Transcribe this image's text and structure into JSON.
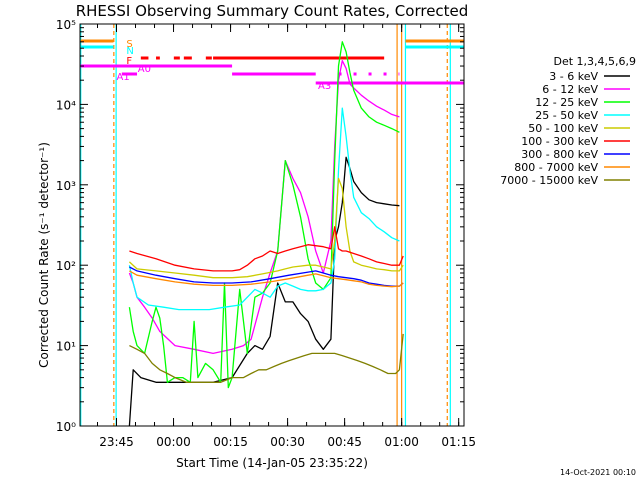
{
  "chart_data": {
    "type": "line",
    "title": "RHESSI Observing Summary Count Rates, Corrected",
    "xlabel": "Start Time (14-Jan-05 23:35:22)",
    "ylabel": "Corrected Count Rate (s⁻¹ detector⁻¹)",
    "footer": "14-Oct-2021 00:10",
    "legend_title": "Det 1,3,4,5,6,9",
    "legend_placement": "right",
    "y_scale": "log",
    "ylim": [
      1,
      100000
    ],
    "y_ticks": [
      {
        "value": 1,
        "label": "10⁰"
      },
      {
        "value": 10,
        "label": "10¹"
      },
      {
        "value": 100,
        "label": "10²"
      },
      {
        "value": 1000,
        "label": "10³"
      },
      {
        "value": 10000,
        "label": "10⁴"
      },
      {
        "value": 100000,
        "label": "10⁵"
      }
    ],
    "xlim_minutes": [
      0,
      101
    ],
    "x_ticks": [
      {
        "minute": 9.6,
        "label": "23:45"
      },
      {
        "minute": 24.6,
        "label": "00:00"
      },
      {
        "minute": 39.6,
        "label": "00:15"
      },
      {
        "minute": 54.6,
        "label": "00:30"
      },
      {
        "minute": 69.6,
        "label": "00:45"
      },
      {
        "minute": 84.6,
        "label": "01:00"
      },
      {
        "minute": 99.6,
        "label": "01:15"
      }
    ],
    "series": [
      {
        "name": "3 - 6 keV",
        "color": "#000000",
        "x": [
          13,
          14,
          16,
          20,
          25,
          30,
          35,
          40,
          44,
          46,
          48,
          50,
          52,
          54,
          56,
          58,
          60,
          62,
          64,
          66,
          67,
          68,
          69,
          70,
          71,
          72,
          74,
          76,
          78,
          80,
          82,
          84
        ],
        "y": [
          1,
          5,
          4,
          3.5,
          3.5,
          3.5,
          3.5,
          4,
          8,
          10,
          9,
          13,
          60,
          35,
          35,
          25,
          20,
          12,
          9,
          12,
          200,
          300,
          600,
          2200,
          1600,
          1100,
          800,
          650,
          600,
          580,
          560,
          550
        ]
      },
      {
        "name": "6 - 12 keV",
        "color": "#ff00ff",
        "x": [
          13,
          14,
          15,
          17,
          19,
          21,
          25,
          30,
          35,
          40,
          43,
          45,
          48,
          50,
          52,
          54,
          56,
          58,
          60,
          62,
          64,
          66,
          67,
          68,
          69,
          70,
          71,
          72,
          74,
          76,
          78,
          80,
          82,
          84
        ],
        "y": [
          80,
          60,
          40,
          30,
          22,
          15,
          10,
          9,
          8,
          9,
          10,
          12,
          40,
          80,
          150,
          2000,
          1200,
          800,
          400,
          150,
          80,
          200,
          3000,
          20000,
          35000,
          28000,
          18000,
          16000,
          13000,
          11000,
          9500,
          8500,
          7500,
          7000
        ]
      },
      {
        "name": "12 - 25 keV",
        "color": "#00ff00",
        "x": [
          13,
          14,
          15,
          17,
          19,
          20,
          21,
          22,
          23,
          25,
          27,
          29,
          30,
          31,
          33,
          35,
          37,
          38,
          39,
          40,
          42,
          44,
          46,
          48,
          50,
          52,
          54,
          56,
          58,
          60,
          62,
          64,
          66,
          67,
          68,
          69,
          70,
          71,
          72,
          74,
          76,
          78,
          80,
          82,
          84
        ],
        "y": [
          30,
          15,
          10,
          8,
          20,
          30,
          22,
          10,
          3.5,
          4,
          4,
          3.5,
          20,
          4,
          6,
          5,
          3.5,
          60,
          3,
          4,
          50,
          8,
          40,
          45,
          60,
          150,
          2000,
          1000,
          400,
          120,
          60,
          50,
          70,
          2000,
          30000,
          60000,
          45000,
          25000,
          15000,
          9000,
          7000,
          6000,
          5500,
          5000,
          4500
        ]
      },
      {
        "name": "25 - 50 keV",
        "color": "#00ffff",
        "x": [
          13,
          14,
          15,
          18,
          22,
          26,
          30,
          34,
          38,
          42,
          46,
          48,
          50,
          52,
          54,
          56,
          58,
          60,
          62,
          64,
          65,
          66,
          67,
          68,
          69,
          70,
          71,
          72,
          74,
          76,
          78,
          80,
          82,
          84
        ],
        "y": [
          100,
          60,
          40,
          32,
          30,
          28,
          28,
          28,
          30,
          32,
          50,
          45,
          40,
          55,
          60,
          55,
          50,
          48,
          48,
          50,
          55,
          60,
          120,
          1500,
          9000,
          4000,
          1500,
          700,
          450,
          380,
          300,
          260,
          220,
          200
        ]
      },
      {
        "name": "50 - 100 keV",
        "color": "#cccc00",
        "x": [
          13,
          15,
          20,
          25,
          30,
          35,
          40,
          44,
          48,
          52,
          54,
          56,
          60,
          62,
          64,
          66,
          67,
          68,
          69,
          70,
          71,
          72,
          74,
          76,
          78,
          80,
          82,
          84,
          85
        ],
        "y": [
          110,
          90,
          85,
          80,
          75,
          70,
          70,
          72,
          78,
          85,
          90,
          95,
          100,
          100,
          95,
          90,
          200,
          1200,
          900,
          300,
          150,
          110,
          100,
          95,
          90,
          88,
          85,
          85,
          100
        ]
      },
      {
        "name": "100 - 300 keV",
        "color": "#ff0000",
        "x": [
          13,
          15,
          20,
          25,
          30,
          35,
          40,
          42,
          44,
          46,
          48,
          50,
          52,
          54,
          56,
          58,
          60,
          62,
          64,
          66,
          67,
          68,
          69,
          70,
          72,
          74,
          76,
          78,
          80,
          82,
          84,
          85
        ],
        "y": [
          150,
          140,
          120,
          100,
          90,
          85,
          85,
          88,
          100,
          120,
          130,
          150,
          140,
          150,
          160,
          170,
          180,
          175,
          170,
          160,
          300,
          160,
          150,
          150,
          140,
          130,
          120,
          110,
          105,
          100,
          100,
          130
        ]
      },
      {
        "name": "300 - 800 keV",
        "color": "#0000ff",
        "x": [
          13,
          15,
          20,
          25,
          30,
          35,
          40,
          45,
          50,
          55,
          60,
          62,
          64,
          66,
          68,
          70,
          72,
          74,
          76,
          78,
          80,
          82,
          84,
          85
        ],
        "y": [
          95,
          85,
          75,
          68,
          62,
          60,
          60,
          62,
          68,
          75,
          82,
          85,
          80,
          75,
          72,
          70,
          68,
          65,
          60,
          58,
          56,
          55,
          55,
          60
        ]
      },
      {
        "name": "800 - 7000 keV",
        "color": "#ff8800",
        "x": [
          13,
          15,
          20,
          25,
          30,
          35,
          40,
          45,
          50,
          55,
          60,
          62,
          64,
          66,
          68,
          70,
          72,
          74,
          76,
          78,
          80,
          82,
          84,
          85
        ],
        "y": [
          85,
          75,
          68,
          62,
          58,
          56,
          56,
          58,
          62,
          68,
          75,
          78,
          74,
          70,
          68,
          66,
          64,
          62,
          58,
          56,
          55,
          54,
          55,
          60
        ]
      },
      {
        "name": "7000 - 15000 keV",
        "color": "#808000",
        "x": [
          13,
          15,
          17,
          19,
          21,
          23,
          25,
          28,
          31,
          34,
          37,
          40,
          43,
          45,
          47,
          49,
          51,
          53,
          55,
          57,
          59,
          61,
          63,
          65,
          67,
          69,
          71,
          73,
          75,
          77,
          79,
          81,
          83,
          84,
          85
        ],
        "y": [
          10,
          9,
          8,
          6,
          5,
          4.5,
          4,
          3.5,
          3.5,
          3.5,
          3.5,
          4,
          4,
          4.5,
          5,
          5,
          5.5,
          6,
          6.5,
          7,
          7.5,
          8,
          8,
          8,
          8,
          7.5,
          7,
          6.5,
          6,
          5.5,
          5,
          4.5,
          4.5,
          5,
          14
        ]
      }
    ],
    "flag_labels": [
      {
        "text": "S",
        "color": "#ff8800"
      },
      {
        "text": "N",
        "color": "#00ffff"
      },
      {
        "text": "F",
        "color": "#ff0000"
      },
      {
        "text": "A0",
        "color": "#ff00ff"
      },
      {
        "text": "A1",
        "color": "#ff00ff"
      },
      {
        "text": "A3",
        "color": "#ff00ff"
      }
    ]
  }
}
